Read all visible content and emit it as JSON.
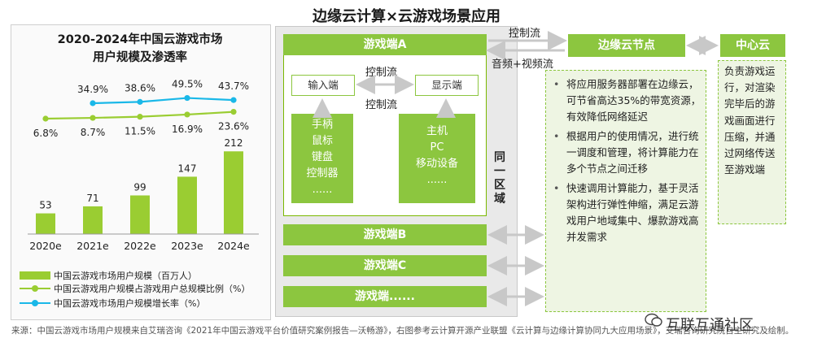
{
  "main_title": "边缘云计算×云游戏场景应用",
  "chart_data": {
    "type": "bar+line",
    "title_line1": "2020-2024年中国云游戏市场",
    "title_line2": "用户规模及渗透率",
    "categories": [
      "2020e",
      "2021e",
      "2022e",
      "2023e",
      "2024e"
    ],
    "series": [
      {
        "name": "中国云游戏市场用户规模（百万人）",
        "type": "bar",
        "values": [
          53,
          71,
          99,
          147,
          212
        ],
        "labels": [
          "53",
          "71",
          "99",
          "147",
          "212"
        ],
        "color": "#9acd32"
      },
      {
        "name": "中国云游戏用户规模占游戏用户总规模比例（%）",
        "type": "line",
        "values": [
          6.8,
          8.7,
          11.5,
          16.9,
          23.6
        ],
        "labels": [
          "6.8%",
          "8.7%",
          "11.5%",
          "16.9%",
          "23.6%"
        ],
        "color": "#9acd32"
      },
      {
        "name": "中国云游戏市场用户规模增长率（%）",
        "type": "line",
        "values": [
          null,
          34.9,
          38.6,
          49.5,
          43.7
        ],
        "labels": [
          "",
          "34.9%",
          "38.6%",
          "49.5%",
          "43.7%"
        ],
        "color": "#1ab8e8"
      }
    ]
  },
  "diagram": {
    "region_label": "同一区域",
    "client_a": {
      "title": "游戏端A",
      "input_label": "输入端",
      "display_label": "显示端",
      "flow_between": "控制流",
      "flow_down": "控制流",
      "input_devices": [
        "手柄",
        "鼠标",
        "键盘",
        "控制器",
        "......"
      ],
      "display_devices": [
        "主机",
        "PC",
        "移动设备",
        "......"
      ]
    },
    "client_b": "游戏端B",
    "client_c": "游戏端C",
    "client_more": "游戏端......",
    "flow_top": "控制流",
    "flow_av": "音频+视频流",
    "edge_node": {
      "title": "边缘云节点",
      "points": [
        "将应用服务器部署在边缘云，可节省高达35%的带宽资源，有效降低网络延迟",
        "根据用户的使用情况，进行统一调度和管理，将计算能力在多个节点之间迁移",
        "快速调用计算能力，基于灵活架构进行弹性伸缩，满足云游戏用户地域集中、爆款游戏高并发需求"
      ]
    },
    "center": {
      "title": "中心云",
      "text": "负责游戏运行，对渲染完毕后的游戏画面进行压缩，并通过网络传送至游戏端"
    }
  },
  "source": "来源：中国云游戏市场用户规模来自艾瑞咨询《2021年中国云游戏平台价值研究案例报告—沃畅游》，右图参考云计算开源产业联盟《云计算与边缘计算协同九大应用场景》，艾瑞咨询研究院自主研究及绘制。",
  "watermark": "互联互通社区",
  "colors": {
    "green": "#8cc63f",
    "blue": "#1ab8e8",
    "panel": "#e9e9e9"
  }
}
